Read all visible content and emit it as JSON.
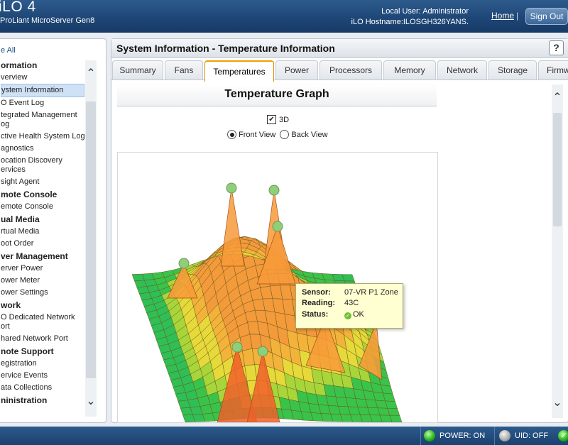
{
  "header": {
    "brand_title": "iLO 4",
    "brand_subtitle": "ProLiant MicroServer Gen8",
    "user_line": "Local User:  Administrator",
    "hostname_line": "iLO Hostname:ILOSGH326YANS.",
    "home_label": "Home",
    "separator": "|",
    "signout_label": "Sign Out"
  },
  "nav": {
    "top_link": "e All",
    "items": [
      {
        "label": "ormation",
        "kind": "head"
      },
      {
        "label": "verview",
        "kind": "item"
      },
      {
        "label": "ystem Information",
        "kind": "item",
        "selected": true
      },
      {
        "label": "O Event Log",
        "kind": "item"
      },
      {
        "label": "tegrated Management og",
        "kind": "item2"
      },
      {
        "label": "ctive Health System Log",
        "kind": "item"
      },
      {
        "label": "agnostics",
        "kind": "item"
      },
      {
        "label": "ocation Discovery ervices",
        "kind": "item2"
      },
      {
        "label": "sight Agent",
        "kind": "item"
      },
      {
        "label": "mote Console",
        "kind": "head"
      },
      {
        "label": "emote Console",
        "kind": "item"
      },
      {
        "label": "ual Media",
        "kind": "head"
      },
      {
        "label": "rtual Media",
        "kind": "item"
      },
      {
        "label": "oot Order",
        "kind": "item"
      },
      {
        "label": "ver Management",
        "kind": "head"
      },
      {
        "label": "erver Power",
        "kind": "item"
      },
      {
        "label": "ower Meter",
        "kind": "item"
      },
      {
        "label": "ower Settings",
        "kind": "item"
      },
      {
        "label": "work",
        "kind": "head"
      },
      {
        "label": "O Dedicated Network ort",
        "kind": "item2"
      },
      {
        "label": "hared Network Port",
        "kind": "item"
      },
      {
        "label": "note Support",
        "kind": "head"
      },
      {
        "label": "egistration",
        "kind": "item"
      },
      {
        "label": "ervice Events",
        "kind": "item"
      },
      {
        "label": "ata Collections",
        "kind": "item"
      },
      {
        "label": "ninistration",
        "kind": "head"
      }
    ]
  },
  "main": {
    "title": "System Information - Temperature Information",
    "help": "?",
    "tabs": [
      {
        "label": "Summary"
      },
      {
        "label": "Fans"
      },
      {
        "label": "Temperatures",
        "active": true
      },
      {
        "label": "Power"
      },
      {
        "label": "Processors"
      },
      {
        "label": "Memory"
      },
      {
        "label": "Network"
      },
      {
        "label": "Storage"
      },
      {
        "label": "Firmware"
      }
    ],
    "graph_heading": "Temperature Graph",
    "option_3d": "3D",
    "front_view": "Front View",
    "back_view": "Back View",
    "tooltip": {
      "sensor_label": "Sensor:",
      "sensor_value": "07-VR P1 Zone",
      "reading_label": "Reading:",
      "reading_value": "43C",
      "status_label": "Status:",
      "status_value": "OK"
    }
  },
  "footer": {
    "power_label": "POWER: ON",
    "uid_label": "UID: OFF"
  },
  "colors": {
    "accent_tab": "#f0a000",
    "ok_green": "#22b11a"
  }
}
